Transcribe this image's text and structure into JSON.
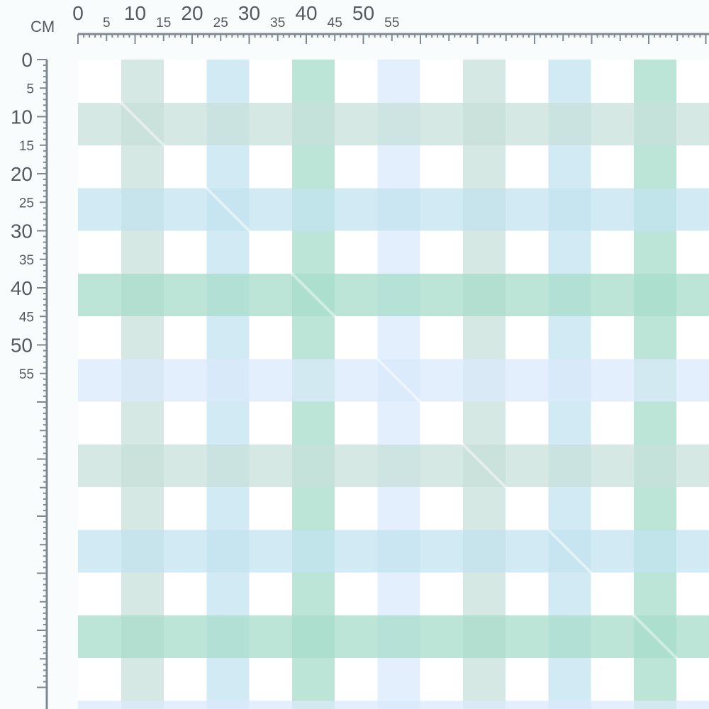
{
  "ruler": {
    "unit_label": "CM",
    "color": "#7e8992",
    "horizontal": {
      "labels": [
        "0",
        "5",
        "10",
        "15",
        "20",
        "25",
        "30",
        "35",
        "40",
        "45",
        "50",
        "55"
      ]
    },
    "vertical": {
      "labels": [
        "0",
        "5",
        "10",
        "15",
        "20",
        "25",
        "30",
        "35",
        "40",
        "45",
        "50",
        "55"
      ]
    }
  },
  "fabric": {
    "name": "gingham-check-pattern",
    "background": "#ffffff",
    "stripe_colors": [
      "#c7e0da",
      "#c2e3ef",
      "#a7dcca",
      "#d9eafb"
    ]
  }
}
